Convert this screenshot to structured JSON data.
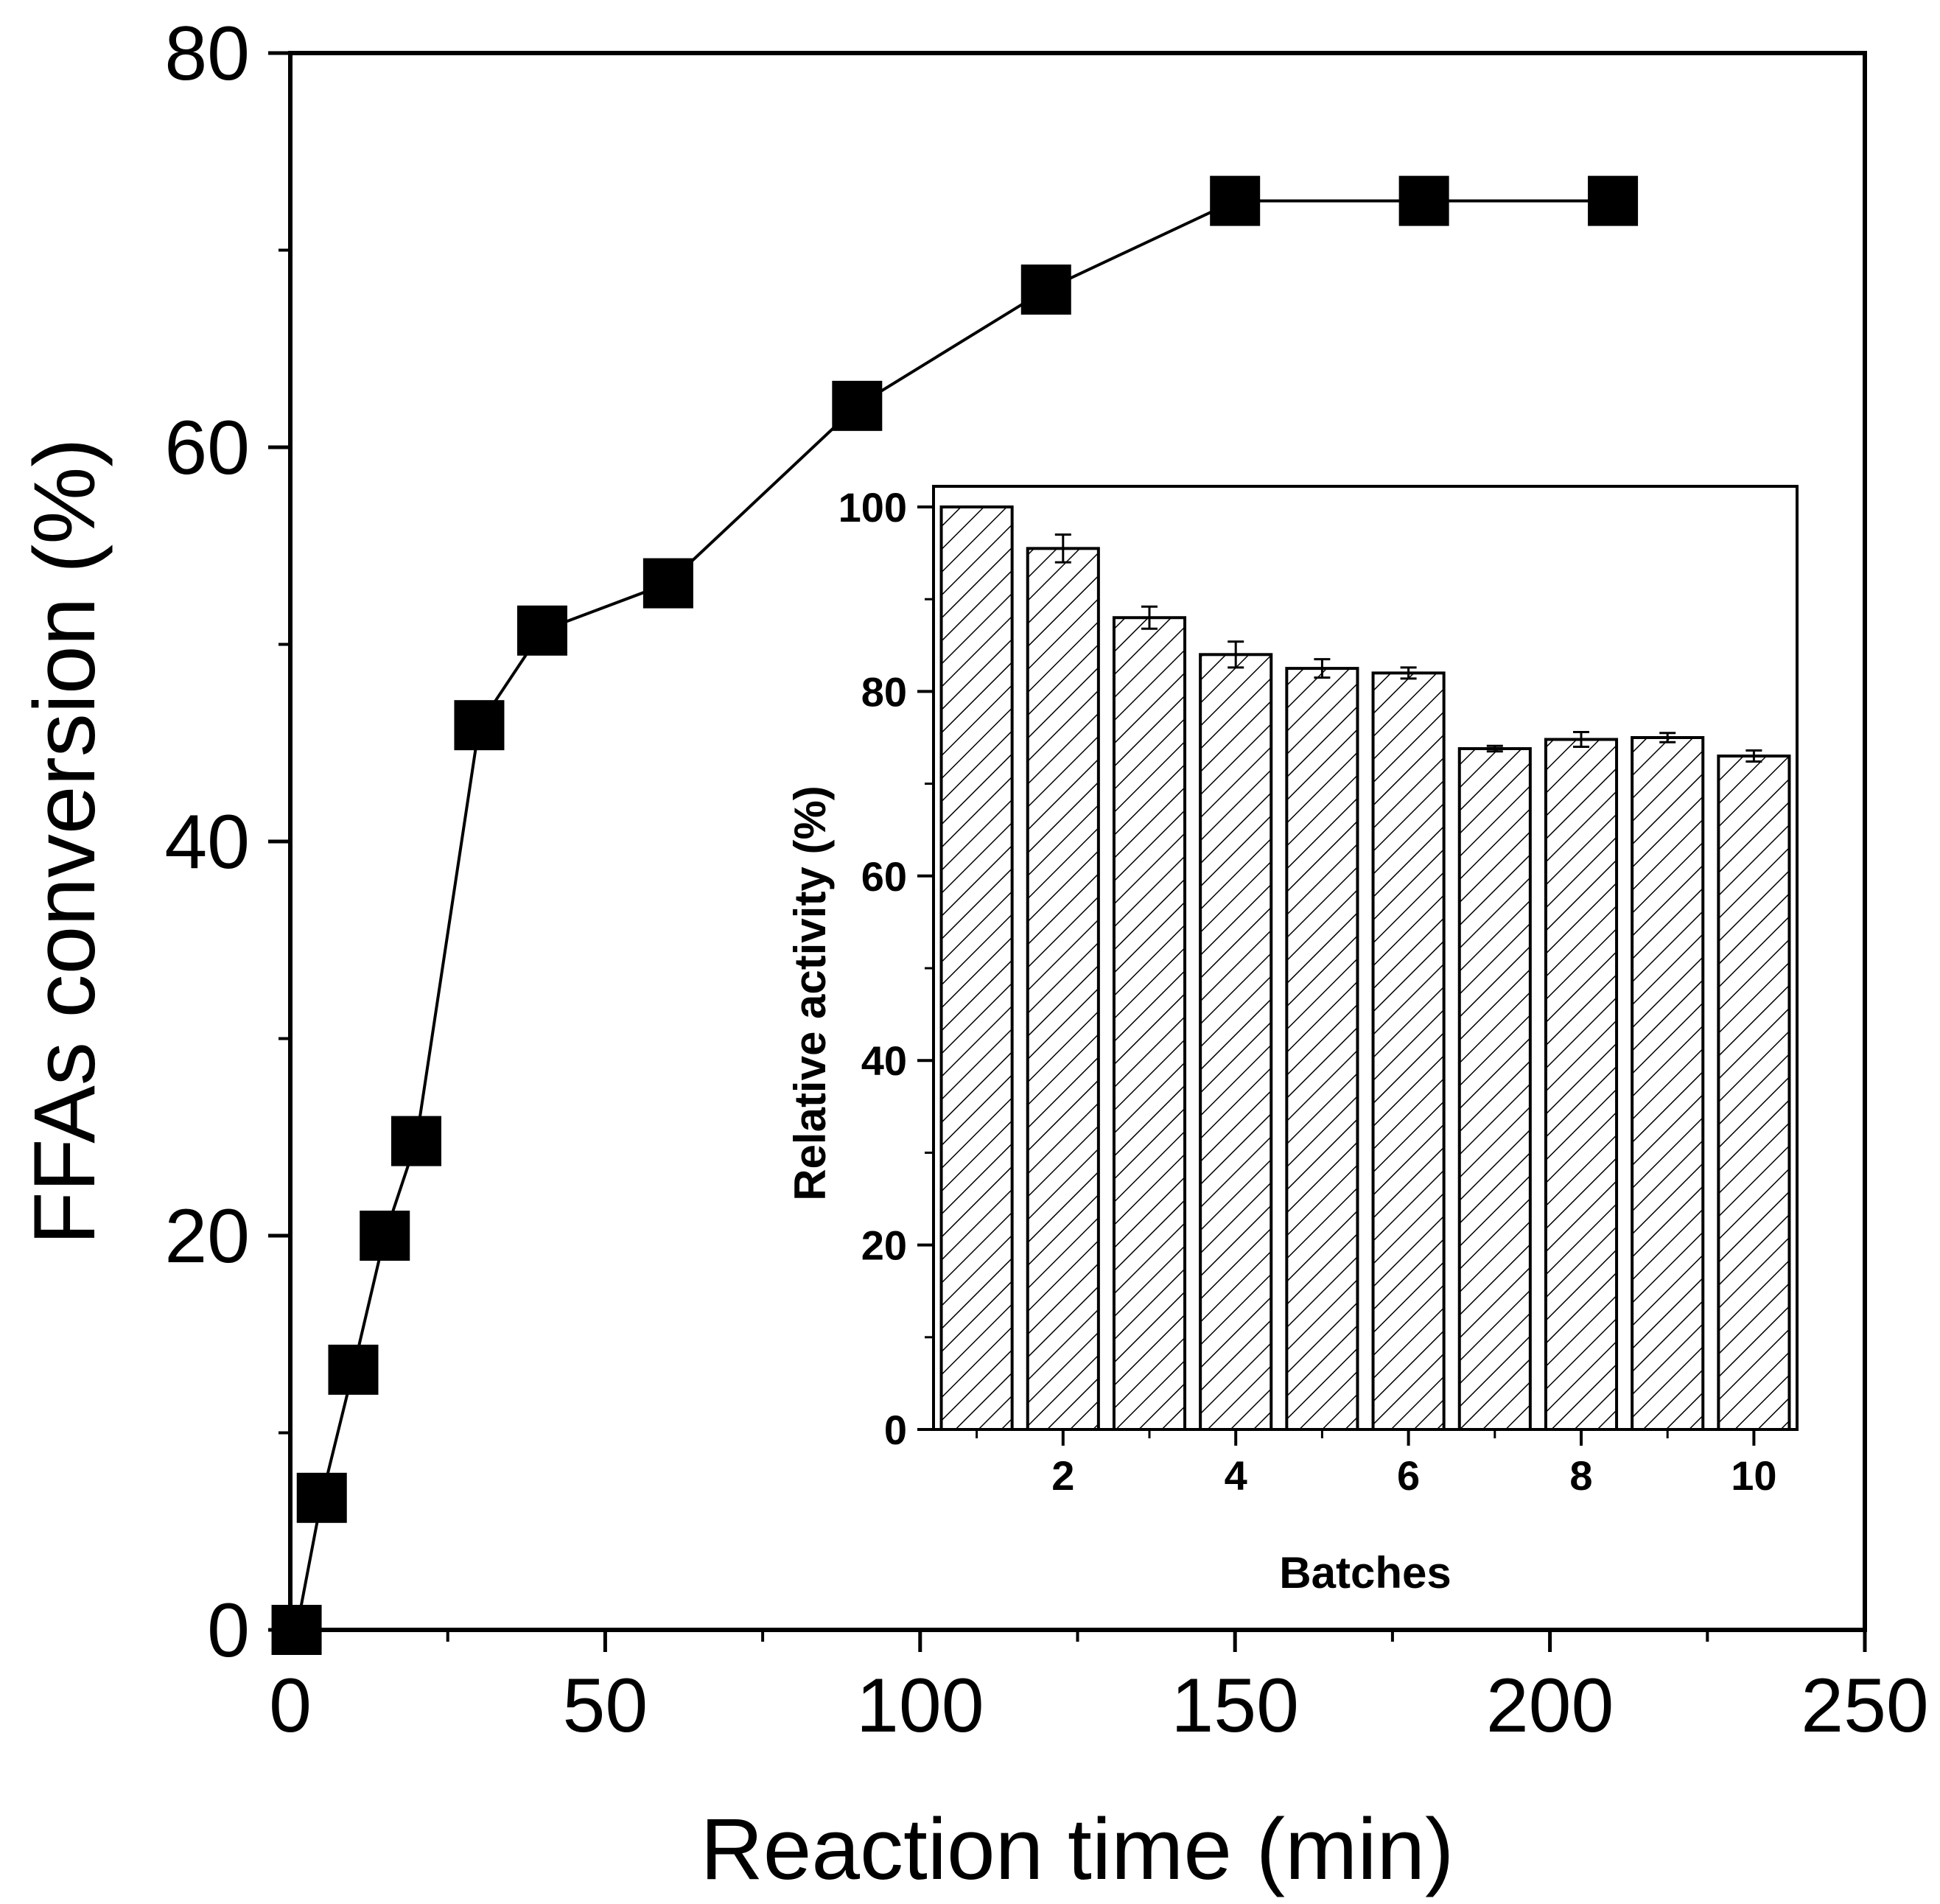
{
  "chart_data": [
    {
      "id": "main",
      "type": "line",
      "title": "",
      "xlabel": "Reaction time (min)",
      "ylabel": "FFAs conversion (%)",
      "xlim": [
        0,
        250
      ],
      "ylim": [
        0,
        80
      ],
      "xticks": [
        0,
        50,
        100,
        150,
        200,
        250
      ],
      "xtick_labels": [
        "0",
        "50",
        "100",
        "150",
        "200",
        "250"
      ],
      "xminor": [
        25,
        75,
        125,
        175,
        225
      ],
      "yticks": [
        0,
        20,
        40,
        60,
        80
      ],
      "ytick_labels": [
        "0",
        "20",
        "40",
        "60",
        "80"
      ],
      "yminor": [
        10,
        30,
        50,
        70
      ],
      "grid": false,
      "series": [
        {
          "name": "FFAs conversion",
          "marker": "square",
          "color": "#000000",
          "x": [
            1,
            5,
            10,
            15,
            20,
            30,
            40,
            60,
            90,
            120,
            150,
            180,
            210
          ],
          "y": [
            0,
            6.7,
            13.2,
            20,
            24.8,
            45.9,
            50.7,
            53.1,
            62.1,
            68.0,
            72.5,
            72.5,
            72.5
          ]
        }
      ]
    },
    {
      "id": "inset",
      "type": "bar",
      "title": "",
      "xlabel": "Batches",
      "ylabel": "Relative activity (%)",
      "xlim": [
        0.5,
        10.5
      ],
      "ylim": [
        0,
        100
      ],
      "xticks": [
        2,
        4,
        6,
        8,
        10
      ],
      "xtick_labels": [
        "2",
        "4",
        "6",
        "8",
        "10"
      ],
      "xminor": [
        1,
        3,
        5,
        7,
        9
      ],
      "yticks": [
        0,
        20,
        40,
        60,
        80,
        100
      ],
      "ytick_labels": [
        "0",
        "20",
        "40",
        "60",
        "80",
        "100"
      ],
      "yminor": [
        10,
        30,
        50,
        70,
        90
      ],
      "grid": false,
      "fill_pattern": "diagonal-hatch",
      "categories": [
        1,
        2,
        3,
        4,
        5,
        6,
        7,
        8,
        9,
        10
      ],
      "values": [
        100,
        95.5,
        88,
        84,
        82.5,
        82,
        73.8,
        74.8,
        75,
        73
      ],
      "errors": [
        0,
        1.5,
        1.2,
        1.4,
        1.0,
        0.6,
        0.3,
        0.8,
        0.5,
        0.6
      ]
    }
  ]
}
